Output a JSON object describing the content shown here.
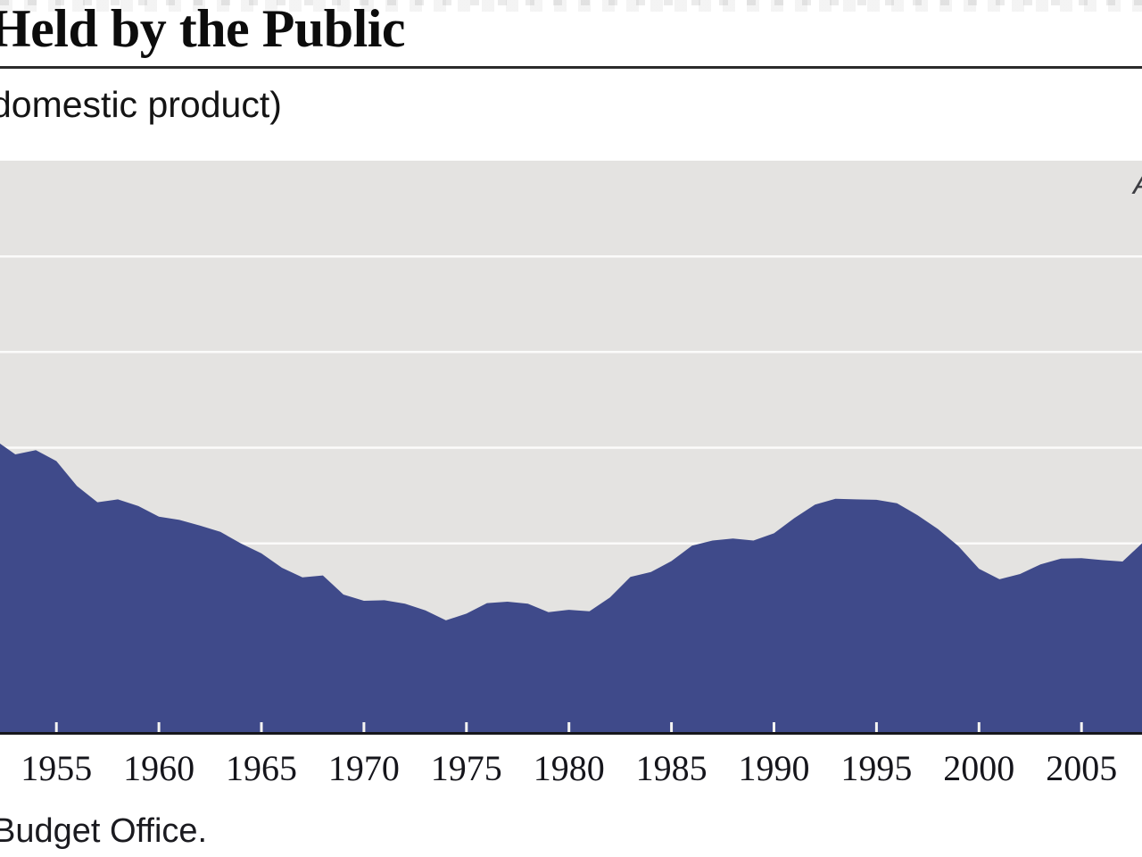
{
  "figure": {
    "title_fragment": "Held by the Public",
    "subtitle_fragment": "domestic product)",
    "source_fragment": "Budget Office.",
    "right_edge_label_fragment": "A"
  },
  "chart_data": {
    "type": "area",
    "title": "Held by the Public",
    "subtitle": "domestic product)",
    "xlabel": "",
    "ylabel": "",
    "legend": "none",
    "grid": true,
    "ylim": [
      0,
      120
    ],
    "gridline_values": [
      20,
      40,
      60,
      80,
      100
    ],
    "x_domain": [
      1952.25,
      2007.95
    ],
    "x": [
      1952,
      1953,
      1954,
      1955,
      1956,
      1957,
      1958,
      1959,
      1960,
      1961,
      1962,
      1963,
      1964,
      1965,
      1966,
      1967,
      1968,
      1969,
      1970,
      1971,
      1972,
      1973,
      1974,
      1975,
      1976,
      1977,
      1978,
      1979,
      1980,
      1981,
      1982,
      1983,
      1984,
      1985,
      1986,
      1987,
      1988,
      1989,
      1990,
      1991,
      1992,
      1993,
      1994,
      1995,
      1996,
      1997,
      1998,
      1999,
      2000,
      2001,
      2002,
      2003,
      2004,
      2005,
      2006,
      2007,
      2008
    ],
    "series": [
      {
        "name": "Held by the Public (percentage of gross domestic product)",
        "values": [
          61.6,
          58.6,
          59.5,
          57.2,
          52.0,
          48.6,
          49.2,
          47.8,
          45.6,
          44.9,
          43.7,
          42.4,
          40.0,
          37.9,
          34.9,
          32.9,
          33.3,
          29.3,
          28.0,
          28.1,
          27.4,
          26.0,
          23.9,
          25.3,
          27.5,
          27.8,
          27.4,
          25.6,
          26.1,
          25.8,
          28.7,
          33.0,
          34.0,
          36.3,
          39.5,
          40.6,
          41.0,
          40.6,
          42.1,
          45.3,
          48.1,
          49.3,
          49.2,
          49.1,
          48.4,
          45.9,
          43.0,
          39.4,
          34.7,
          32.5,
          33.6,
          35.6,
          36.8,
          36.9,
          36.5,
          36.2,
          40.2
        ]
      }
    ],
    "x_tick_years": [
      1955,
      1960,
      1965,
      1970,
      1975,
      1980,
      1985,
      1990,
      1995,
      2000,
      2005
    ],
    "x_tick_labels": [
      "1955",
      "1960",
      "1965",
      "1970",
      "1975",
      "1980",
      "1985",
      "1990",
      "1995",
      "2000",
      "2005"
    ],
    "colors": {
      "area": "#3F4A8A",
      "plot_bg": "#E4E3E1",
      "gridline": "#FBFBFA",
      "tick": "#F4F4F2",
      "axis": "#17171C"
    }
  }
}
